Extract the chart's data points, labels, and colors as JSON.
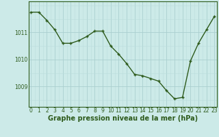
{
  "x": [
    0,
    1,
    2,
    3,
    4,
    5,
    6,
    7,
    8,
    9,
    10,
    11,
    12,
    13,
    14,
    15,
    16,
    17,
    18,
    19,
    20,
    21,
    22,
    23
  ],
  "y": [
    1011.75,
    1011.75,
    1011.45,
    1011.1,
    1010.6,
    1010.6,
    1010.7,
    1010.85,
    1011.05,
    1011.05,
    1010.5,
    1010.2,
    1009.85,
    1009.45,
    1009.4,
    1009.3,
    1009.2,
    1008.85,
    1008.55,
    1008.6,
    1009.95,
    1010.6,
    1011.1,
    1011.6
  ],
  "line_color": "#2d5a1b",
  "marker_color": "#2d5a1b",
  "bg_color": "#cceae8",
  "grid_major_color": "#aacfcf",
  "grid_minor_color": "#bbdcdc",
  "xlabel": "Graphe pression niveau de la mer (hPa)",
  "ylim": [
    1008.25,
    1012.15
  ],
  "yticks": [
    1009,
    1010,
    1011
  ],
  "xticks": [
    0,
    1,
    2,
    3,
    4,
    5,
    6,
    7,
    8,
    9,
    10,
    11,
    12,
    13,
    14,
    15,
    16,
    17,
    18,
    19,
    20,
    21,
    22,
    23
  ],
  "xlim": [
    -0.3,
    23.3
  ],
  "tick_fontsize": 5.5,
  "xlabel_fontsize": 7.0,
  "marker_size": 3.0,
  "line_width": 1.0
}
